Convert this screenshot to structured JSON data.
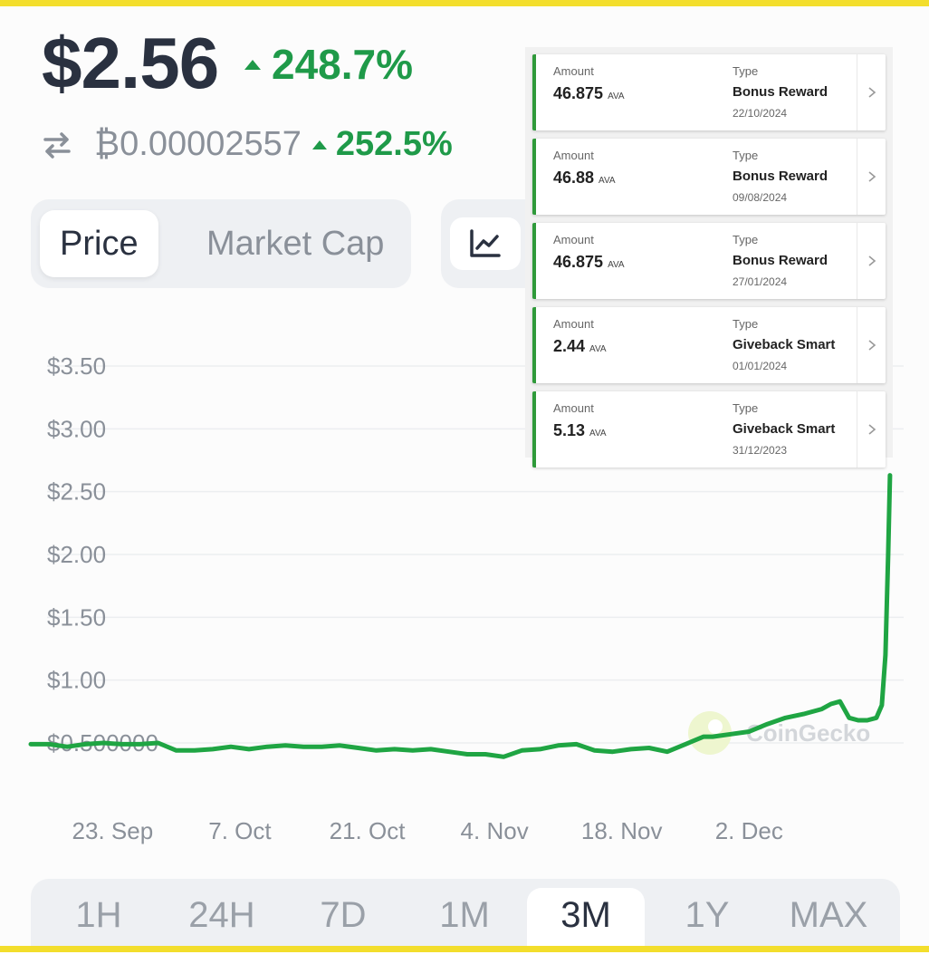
{
  "price": {
    "value": "$2.56",
    "change": "248.7%"
  },
  "btc": {
    "value": "₿0.00002557",
    "change": "252.5%"
  },
  "toggle": {
    "price": "Price",
    "market_cap": "Market Cap"
  },
  "icons": {
    "swap": "swap-arrows-icon",
    "chart_type": "line-chart-icon",
    "chevron": "chevron-right-icon",
    "watermark_logo": "gecko-logo-icon"
  },
  "colors": {
    "positive": "#1f9a49",
    "line": "#1fa543",
    "card_accent": "#2f9a3a",
    "frame": "#f3de2c"
  },
  "transactions": [
    {
      "amount_label": "Amount",
      "amount": "46.875",
      "unit": "AVA",
      "type_label": "Type",
      "type": "Bonus Reward",
      "date": "22/10/2024"
    },
    {
      "amount_label": "Amount",
      "amount": "46.88",
      "unit": "AVA",
      "type_label": "Type",
      "type": "Bonus Reward",
      "date": "09/08/2024"
    },
    {
      "amount_label": "Amount",
      "amount": "46.875",
      "unit": "AVA",
      "type_label": "Type",
      "type": "Bonus Reward",
      "date": "27/01/2024"
    },
    {
      "amount_label": "Amount",
      "amount": "2.44",
      "unit": "AVA",
      "type_label": "Type",
      "type": "Giveback Smart",
      "date": "01/01/2024"
    },
    {
      "amount_label": "Amount",
      "amount": "5.13",
      "unit": "AVA",
      "type_label": "Type",
      "type": "Giveback Smart",
      "date": "31/12/2023"
    }
  ],
  "timeframes": [
    "1H",
    "24H",
    "7D",
    "1M",
    "3M",
    "1Y",
    "MAX"
  ],
  "active_timeframe": "3M",
  "chart_data": {
    "type": "line",
    "title": "",
    "xlabel": "",
    "ylabel": "",
    "watermark": "CoinGecko",
    "ylim": [
      0.5,
      3.5
    ],
    "y_ticks": [
      3.5,
      3.0,
      2.5,
      2.0,
      1.5,
      1.0,
      0.5
    ],
    "y_tick_labels": [
      "$3.50",
      "$3.00",
      "$2.50",
      "$2.00",
      "$1.50",
      "$1.00",
      "$0.500000"
    ],
    "x_ticks": [
      2,
      16,
      30,
      44,
      58,
      72
    ],
    "x_tick_labels": [
      "23. Sep",
      "7. Oct",
      "21. Oct",
      "4. Nov",
      "18. Nov",
      "2. Dec"
    ],
    "x_range": [
      -7,
      89
    ],
    "grid": true,
    "series": [
      {
        "x": [
          -7,
          -5,
          -3,
          -1,
          1,
          3,
          5,
          7,
          9,
          11,
          13,
          15,
          17,
          19,
          21,
          23,
          25,
          27,
          29,
          31,
          33,
          35,
          37,
          39,
          41,
          43,
          45,
          47,
          49,
          51,
          53,
          55,
          57,
          59,
          61,
          63,
          65,
          67,
          68,
          70,
          72,
          74,
          76,
          78,
          80,
          81,
          82,
          83,
          84,
          84.5,
          85,
          86,
          86.6,
          87,
          87.3,
          87.5
        ],
        "y": [
          0.49,
          0.49,
          0.47,
          0.49,
          0.5,
          0.49,
          0.49,
          0.5,
          0.44,
          0.44,
          0.45,
          0.47,
          0.45,
          0.47,
          0.48,
          0.47,
          0.47,
          0.48,
          0.46,
          0.44,
          0.45,
          0.44,
          0.45,
          0.43,
          0.41,
          0.41,
          0.39,
          0.44,
          0.45,
          0.48,
          0.49,
          0.44,
          0.43,
          0.45,
          0.46,
          0.43,
          0.49,
          0.55,
          0.55,
          0.57,
          0.59,
          0.65,
          0.7,
          0.73,
          0.77,
          0.81,
          0.83,
          0.7,
          0.68,
          0.68,
          0.68,
          0.7,
          0.8,
          1.2,
          2.0,
          2.63
        ]
      }
    ]
  }
}
